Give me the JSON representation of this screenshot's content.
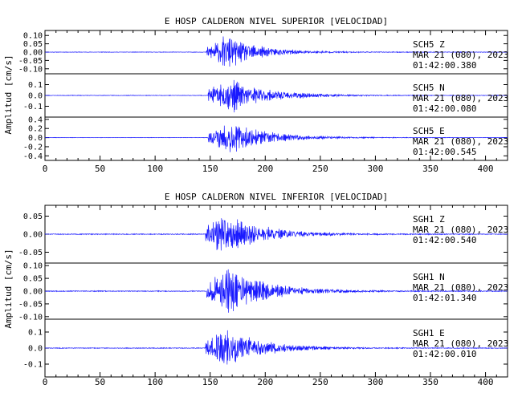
{
  "chart_data": [
    {
      "type": "line",
      "title": "E HOSP CALDERON NIVEL SUPERIOR [VELOCIDAD]",
      "ylabel": "Amplitud [cm/s]",
      "xlabel": "",
      "xlim": [
        0,
        420
      ],
      "x_ticks": [
        "0",
        "50",
        "100",
        "150",
        "200",
        "250",
        "300",
        "350",
        "400"
      ],
      "grid": false,
      "line_color": "#1a1aff",
      "panels": [
        {
          "station": "SCH5",
          "channel": "Z",
          "label": "SCH5   Z",
          "date": "MAR 21 (080), 2023",
          "time": "01:42:00.380",
          "ylim": [
            -0.13,
            0.13
          ],
          "y_ticks": [
            "0.10",
            "0.05",
            "0.00",
            "-0.05",
            "-0.10"
          ],
          "tick_values": [
            0.1,
            0.05,
            0,
            -0.05,
            -0.1
          ],
          "signal": {
            "noise": 0.002,
            "onset": 147,
            "peak_t": 165,
            "peak_amp": 0.115,
            "decay": 30,
            "seed": 11
          }
        },
        {
          "station": "SCH5",
          "channel": "N",
          "label": "SCH5   N",
          "date": "MAR 21 (080), 2023",
          "time": "01:42:00.080",
          "ylim": [
            -0.2,
            0.2
          ],
          "y_ticks": [
            "0.1",
            "0.0",
            "-0.1"
          ],
          "tick_values": [
            0.1,
            0,
            -0.1
          ],
          "signal": {
            "noise": 0.003,
            "onset": 148,
            "peak_t": 170,
            "peak_amp": 0.17,
            "decay": 34,
            "seed": 23
          }
        },
        {
          "station": "SCH5",
          "channel": "E",
          "label": "SCH5   E",
          "date": "MAR 21 (080), 2023",
          "time": "01:42:00.545",
          "ylim": [
            -0.5,
            0.45
          ],
          "y_ticks": [
            "0.4",
            "0.2",
            "0.0",
            "-0.2",
            "-0.4"
          ],
          "tick_values": [
            0.4,
            0.2,
            0,
            -0.2,
            -0.4
          ],
          "signal": {
            "noise": 0.005,
            "onset": 148,
            "peak_t": 168,
            "peak_amp": 0.42,
            "decay": 34,
            "seed": 37
          }
        }
      ]
    },
    {
      "type": "line",
      "title": "E HOSP CALDERON NIVEL INFERIOR [VELOCIDAD]",
      "ylabel": "Amplitud [cm/s]",
      "xlabel": "",
      "xlim": [
        0,
        420
      ],
      "x_ticks": [
        "0",
        "50",
        "100",
        "150",
        "200",
        "250",
        "300",
        "350",
        "400"
      ],
      "grid": false,
      "line_color": "#1a1aff",
      "panels": [
        {
          "station": "SGH1",
          "channel": "Z",
          "label": "SGH1   Z",
          "date": "MAR 21 (080), 2023",
          "time": "01:42:00.540",
          "ylim": [
            -0.08,
            0.08
          ],
          "y_ticks": [
            "0.05",
            "0.00",
            "-0.05"
          ],
          "tick_values": [
            0.05,
            0,
            -0.05
          ],
          "signal": {
            "noise": 0.0015,
            "onset": 146,
            "peak_t": 163,
            "peak_amp": 0.075,
            "decay": 32,
            "seed": 51
          }
        },
        {
          "station": "SGH1",
          "channel": "N",
          "label": "SGH1   N",
          "date": "MAR 21 (080), 2023",
          "time": "01:42:01.340",
          "ylim": [
            -0.11,
            0.11
          ],
          "y_ticks": [
            "0.10",
            "0.05",
            "0.00",
            "-0.05",
            "-0.10"
          ],
          "tick_values": [
            0.1,
            0.05,
            0,
            -0.05,
            -0.1
          ],
          "signal": {
            "noise": 0.002,
            "onset": 147,
            "peak_t": 165,
            "peak_amp": 0.1,
            "decay": 36,
            "seed": 67
          }
        },
        {
          "station": "SGH1",
          "channel": "E",
          "label": "SGH1   E",
          "date": "MAR 21 (080), 2023",
          "time": "01:42:00.010",
          "ylim": [
            -0.18,
            0.18
          ],
          "y_ticks": [
            "0.1",
            "0.0",
            "-0.1"
          ],
          "tick_values": [
            0.1,
            0,
            -0.1
          ],
          "signal": {
            "noise": 0.003,
            "onset": 146,
            "peak_t": 162,
            "peak_amp": 0.16,
            "decay": 32,
            "seed": 83
          }
        }
      ]
    }
  ]
}
